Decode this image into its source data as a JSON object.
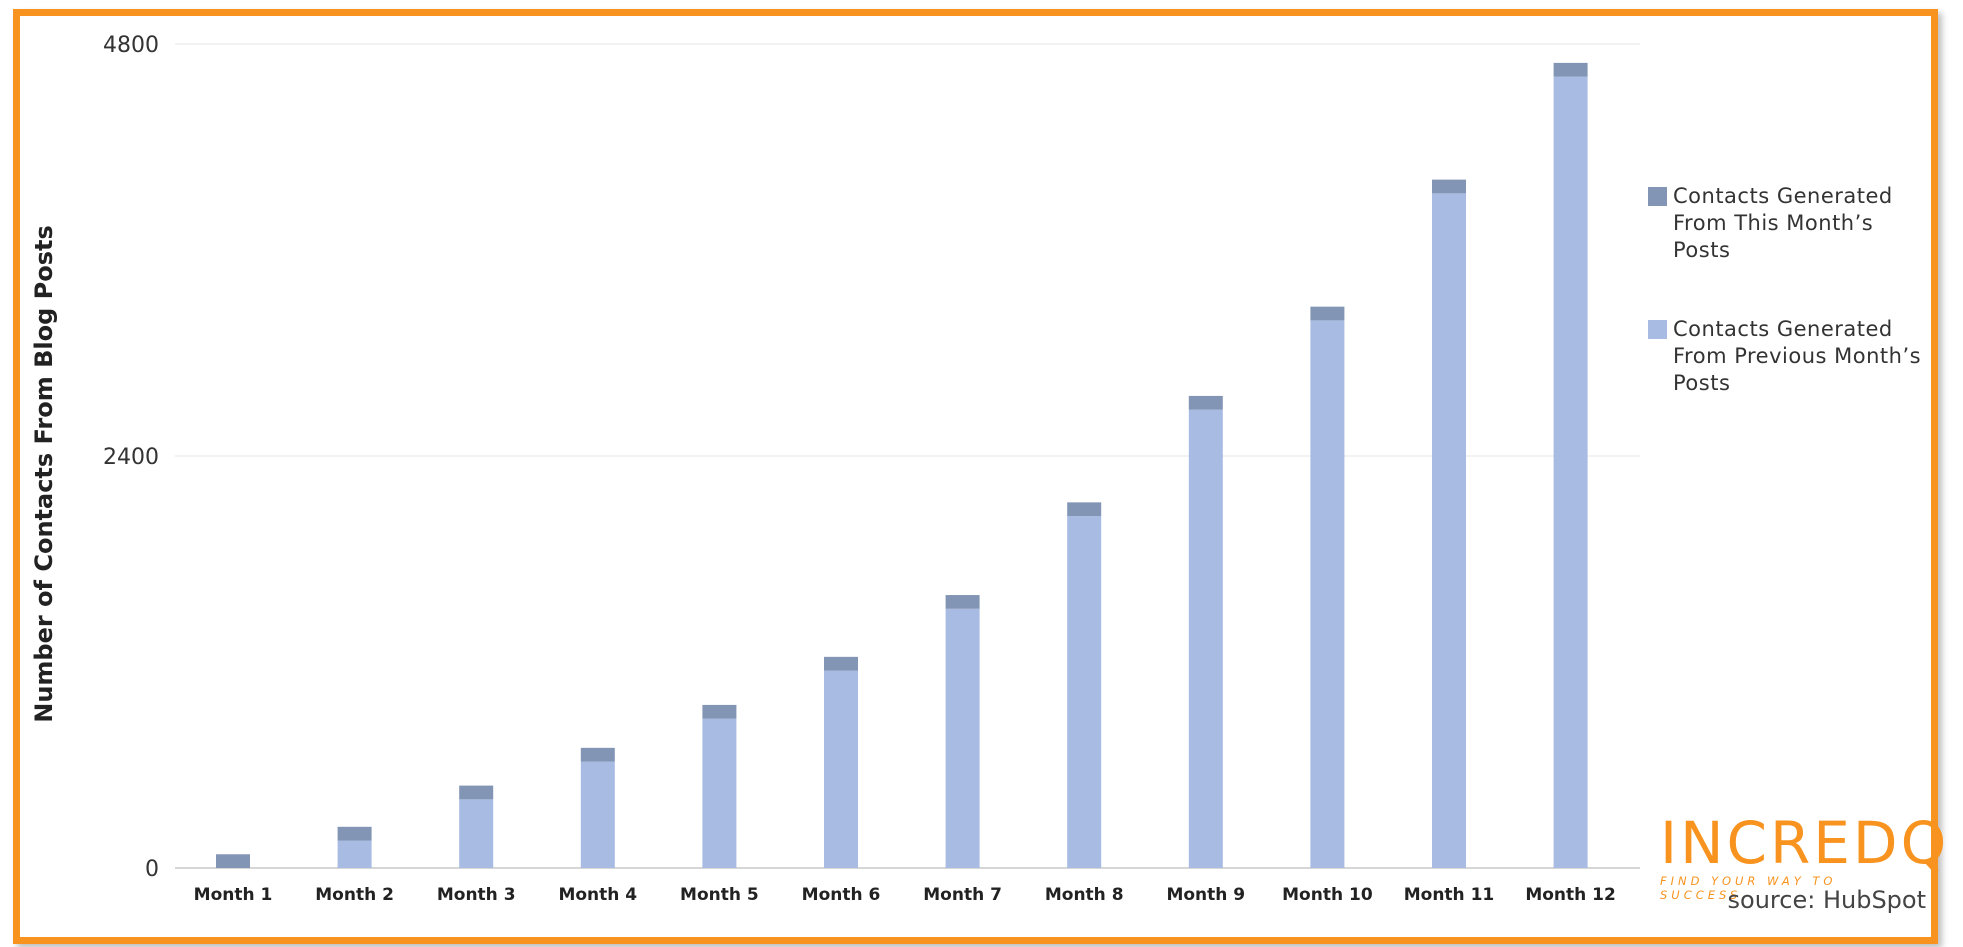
{
  "chart_data": {
    "type": "bar",
    "stacked": true,
    "title": "",
    "xlabel": "",
    "ylabel": "Number of  Contacts From Blog Posts",
    "ylim": [
      0,
      4800
    ],
    "yticks": [
      "0",
      "2400",
      "4800"
    ],
    "grid": true,
    "legend_position": "right",
    "categories": [
      "Month 1",
      "Month 2",
      "Month 3",
      "Month 4",
      "Month 5",
      "Month 6",
      "Month 7",
      "Month 8",
      "Month 9",
      "Month 10",
      "Month 11",
      "Month 12"
    ],
    "series": [
      {
        "name": "Contacts Generated From Previous Month’s Posts",
        "color": "#a7bbe3",
        "values": [
          0,
          160,
          400,
          620,
          870,
          1150,
          1510,
          2050,
          2670,
          3190,
          3930,
          4610
        ]
      },
      {
        "name": "Contacts Generated From This Month’s Posts",
        "color": "#8295b5",
        "values": [
          80,
          80,
          80,
          80,
          80,
          80,
          80,
          80,
          80,
          80,
          80,
          80
        ]
      }
    ]
  },
  "legend": [
    {
      "label": "Contacts Generated From This Month’s Posts",
      "color": "#8295b5"
    },
    {
      "label": "Contacts Generated From Previous Month’s Posts",
      "color": "#a7bbe3"
    }
  ],
  "branding": {
    "logo_text": "INCREDQ",
    "logo_tagline": "FIND YOUR WAY TO SUCCESS",
    "source": "source: HubSpot"
  },
  "colors": {
    "frame": "#f7931e",
    "accent": "#f7931e"
  }
}
